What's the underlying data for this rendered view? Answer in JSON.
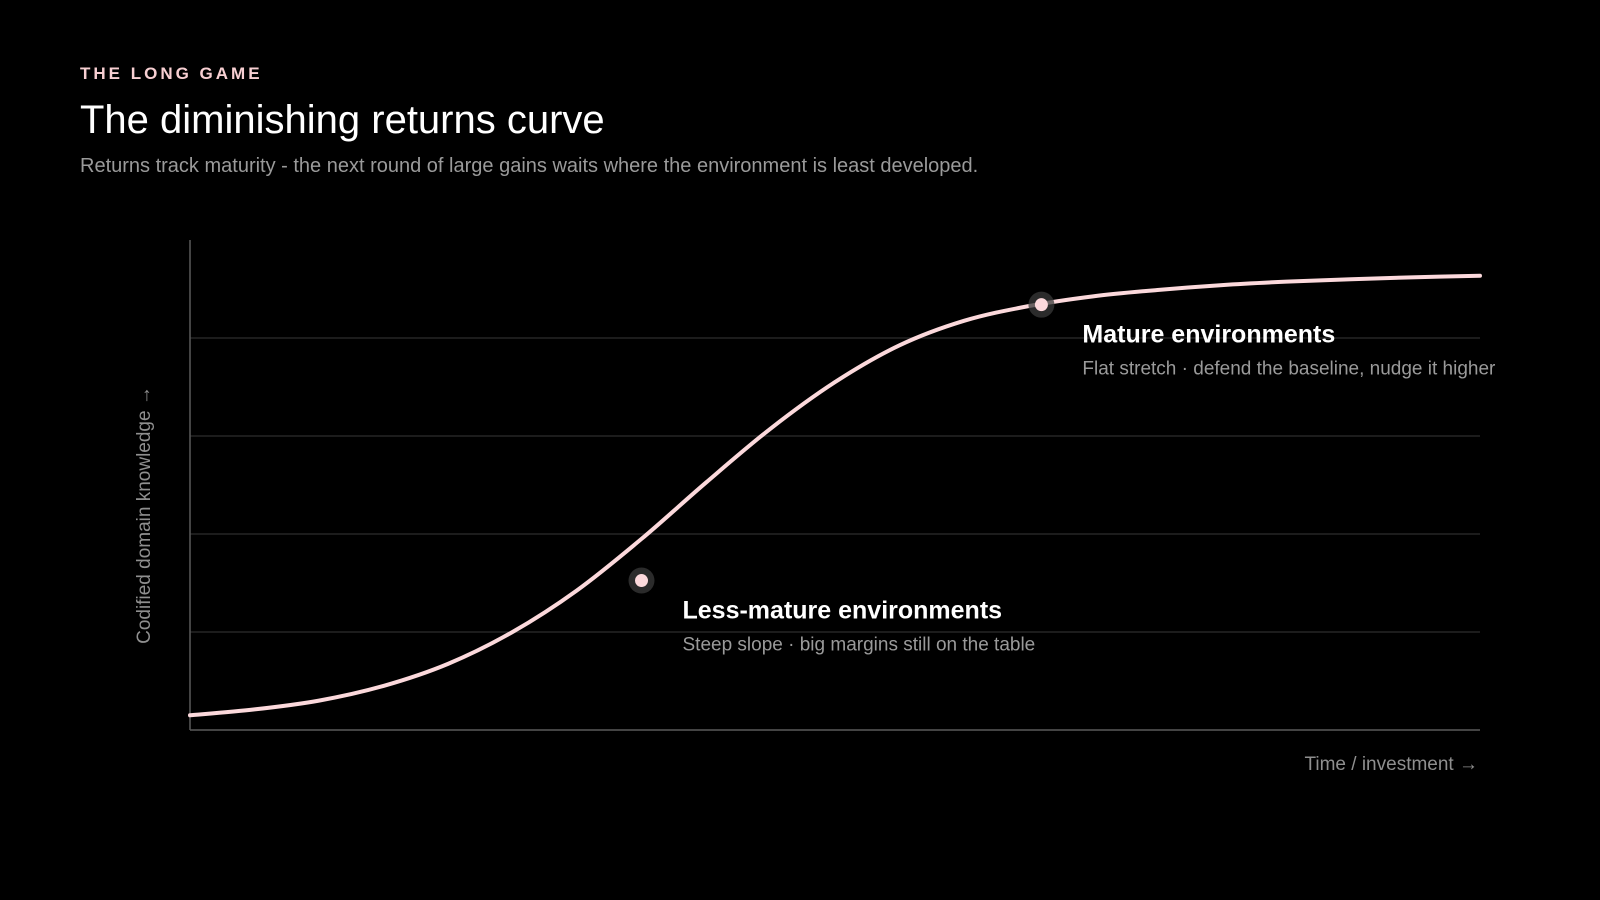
{
  "header": {
    "eyebrow": "THE LONG GAME",
    "title": "The diminishing returns curve",
    "subtitle": "Returns track maturity - the next round of large gains waits where the environment is least developed."
  },
  "colors": {
    "background": "#000000",
    "accent": "#f7cfd2",
    "curve": "#fcd9dc",
    "grid": "#262626",
    "axis": "#5a5a5a",
    "muted_text": "#8f8f8f"
  },
  "chart_data": {
    "type": "line",
    "title": "The diminishing returns curve",
    "subtitle": "Returns track maturity - the next round of large gains waits where the environment is least developed.",
    "xlabel": "Time / investment →",
    "ylabel": "Codified domain knowledge →",
    "xlim": [
      0,
      100
    ],
    "ylim": [
      0,
      100
    ],
    "grid": "horizontal",
    "ticks_labeled": false,
    "series": [
      {
        "x": [
          0,
          5,
          10,
          15,
          20,
          25,
          30,
          35,
          40,
          45,
          50,
          55,
          60,
          65,
          70,
          75,
          80,
          85,
          90,
          95,
          100
        ],
        "y": [
          3,
          4.2,
          6,
          9,
          13.5,
          20,
          28.5,
          39,
          50.5,
          61.5,
          71,
          78.5,
          83.5,
          86.5,
          88.5,
          89.8,
          90.8,
          91.5,
          92,
          92.4,
          92.7
        ]
      }
    ],
    "annotations": [
      {
        "x": 35,
        "y": 30.5,
        "title": "Less-mature environments",
        "text": "Steep slope · big margins still on the table"
      },
      {
        "x": 66,
        "y": 86.8,
        "title": "Mature environments",
        "text": "Flat stretch · defend the baseline, nudge it higher"
      }
    ]
  }
}
